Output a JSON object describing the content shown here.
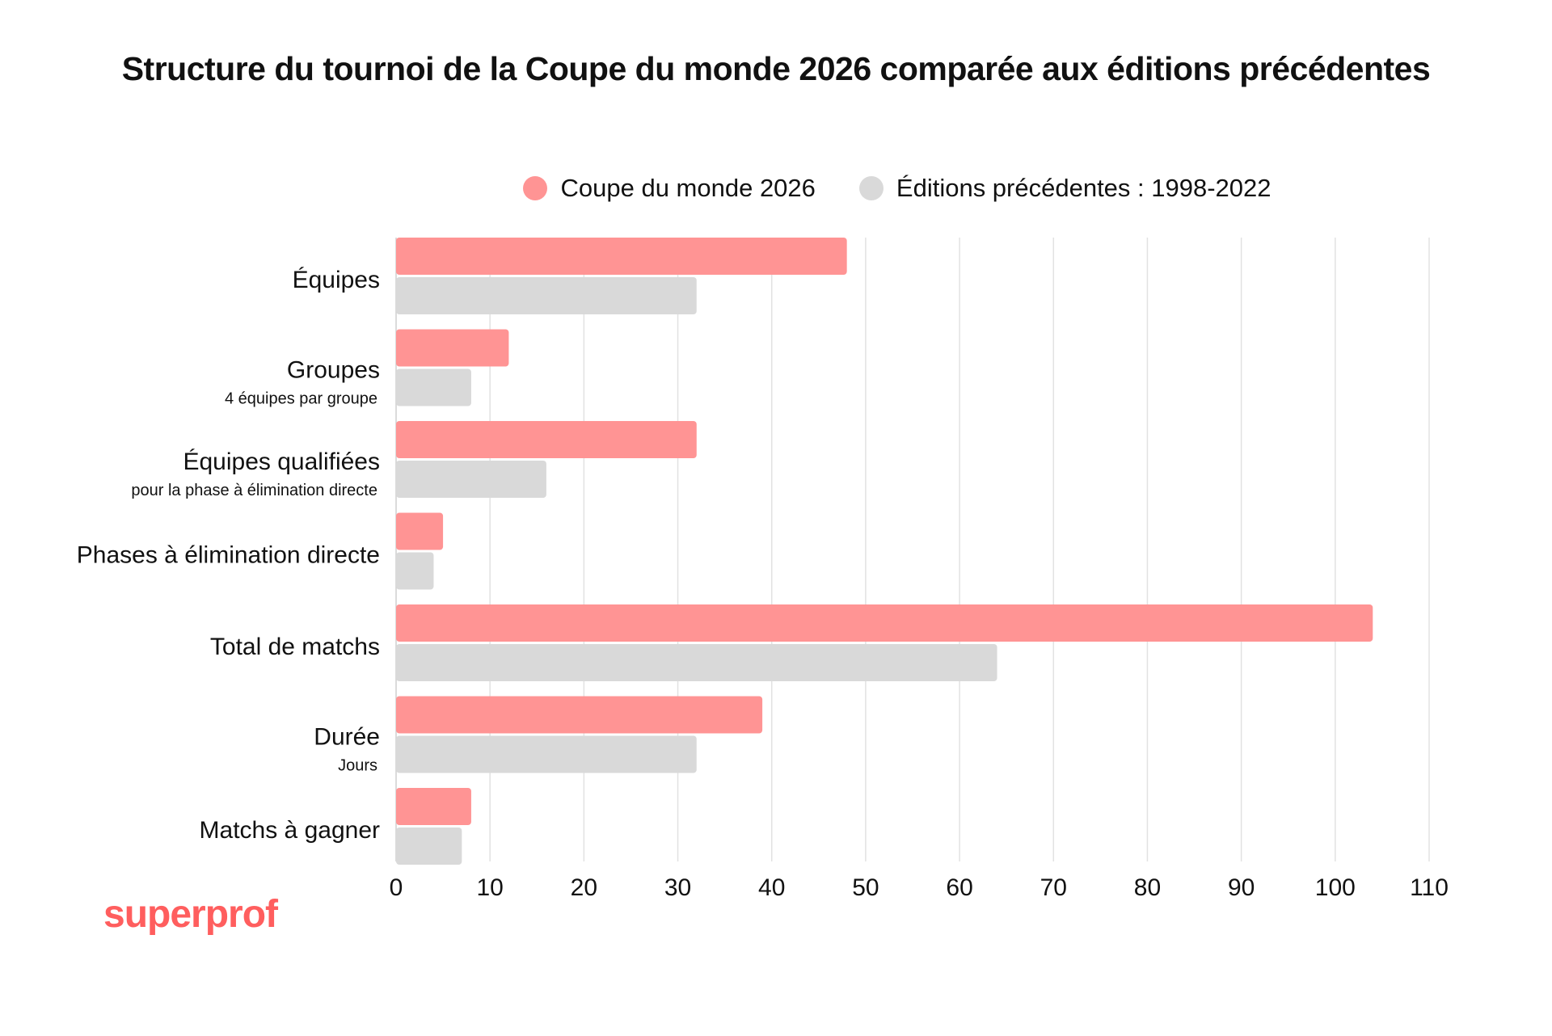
{
  "chart_data": {
    "type": "bar",
    "orientation": "horizontal",
    "title": "Structure du tournoi de la Coupe du monde 2026 comparée aux éditions précédentes",
    "categories": [
      "Équipes",
      "Groupes",
      "Équipes qualifiées",
      "Phases à élimination directe",
      "Total de matchs",
      "Durée",
      "Matchs à gagner"
    ],
    "category_sublabels": [
      "",
      "4  équipes par groupe",
      "pour la phase à élimination directe",
      "",
      "",
      "Jours",
      ""
    ],
    "series": [
      {
        "name": "Coupe du monde 2026",
        "color": "#ff9494",
        "values": [
          48,
          12,
          32,
          5,
          104,
          39,
          8
        ]
      },
      {
        "name": "Éditions précédentes : 1998-2022",
        "color": "#d9d9d9",
        "values": [
          32,
          8,
          16,
          4,
          64,
          32,
          7
        ]
      }
    ],
    "xlim": [
      0,
      110
    ],
    "xticks": [
      0,
      10,
      20,
      30,
      40,
      50,
      60,
      70,
      80,
      90,
      100,
      110
    ],
    "grid": true,
    "legend_position": "top"
  },
  "brand": {
    "logo_text": "superprof",
    "color": "#ff5e5e"
  }
}
